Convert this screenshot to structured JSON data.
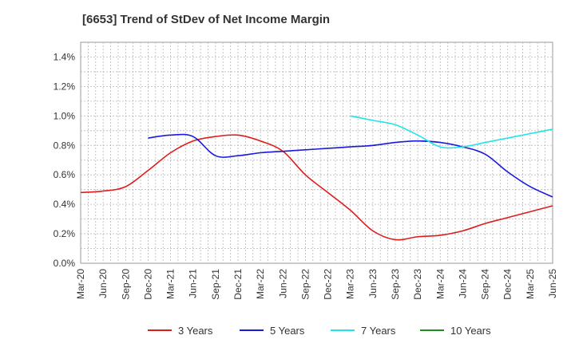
{
  "title": "[6653]  Trend of StDev of Net Income Margin",
  "chart_data": {
    "type": "line",
    "title": "[6653]  Trend of StDev of Net Income Margin",
    "xlabel": "",
    "ylabel": "",
    "grid": true,
    "legend_placement": "bottom",
    "ylim": [
      0,
      1.5
    ],
    "y_tick_values": [
      0,
      0.2,
      0.4,
      0.6,
      0.8,
      1.0,
      1.2,
      1.4
    ],
    "y_tick_labels": [
      "0.0%",
      "0.2%",
      "0.4%",
      "0.6%",
      "0.8%",
      "1.0%",
      "1.2%",
      "1.4%"
    ],
    "x_tick_labels": [
      "Mar-20",
      "Jun-20",
      "Sep-20",
      "Dec-20",
      "Mar-21",
      "Jun-21",
      "Sep-21",
      "Dec-21",
      "Mar-22",
      "Jun-22",
      "Sep-22",
      "Dec-22",
      "Mar-23",
      "Jun-23",
      "Sep-23",
      "Dec-23",
      "Mar-24",
      "Jun-24",
      "Sep-24",
      "Dec-24",
      "Mar-25",
      "Jun-25"
    ],
    "series": [
      {
        "name": "3 Years",
        "color": "#dd1c1c",
        "values": [
          0.48,
          0.49,
          0.52,
          0.63,
          0.75,
          0.83,
          0.86,
          0.87,
          0.83,
          0.76,
          0.6,
          0.48,
          0.36,
          0.22,
          0.16,
          0.18,
          0.19,
          0.22,
          0.27,
          0.31,
          0.35,
          0.39
        ]
      },
      {
        "name": "5 Years",
        "color": "#1a1adb",
        "values": [
          null,
          null,
          null,
          0.85,
          0.87,
          0.86,
          0.73,
          0.73,
          0.75,
          0.76,
          0.77,
          0.78,
          0.79,
          0.8,
          0.82,
          0.83,
          0.82,
          0.79,
          0.74,
          0.62,
          0.52,
          0.45
        ]
      },
      {
        "name": "7 Years",
        "color": "#22e4e6",
        "values": [
          null,
          null,
          null,
          null,
          null,
          null,
          null,
          null,
          null,
          null,
          null,
          null,
          1.0,
          0.97,
          0.94,
          0.87,
          0.79,
          0.79,
          0.82,
          0.85,
          0.88,
          0.91
        ]
      },
      {
        "name": "10 Years",
        "color": "#228b22",
        "values": []
      }
    ]
  }
}
